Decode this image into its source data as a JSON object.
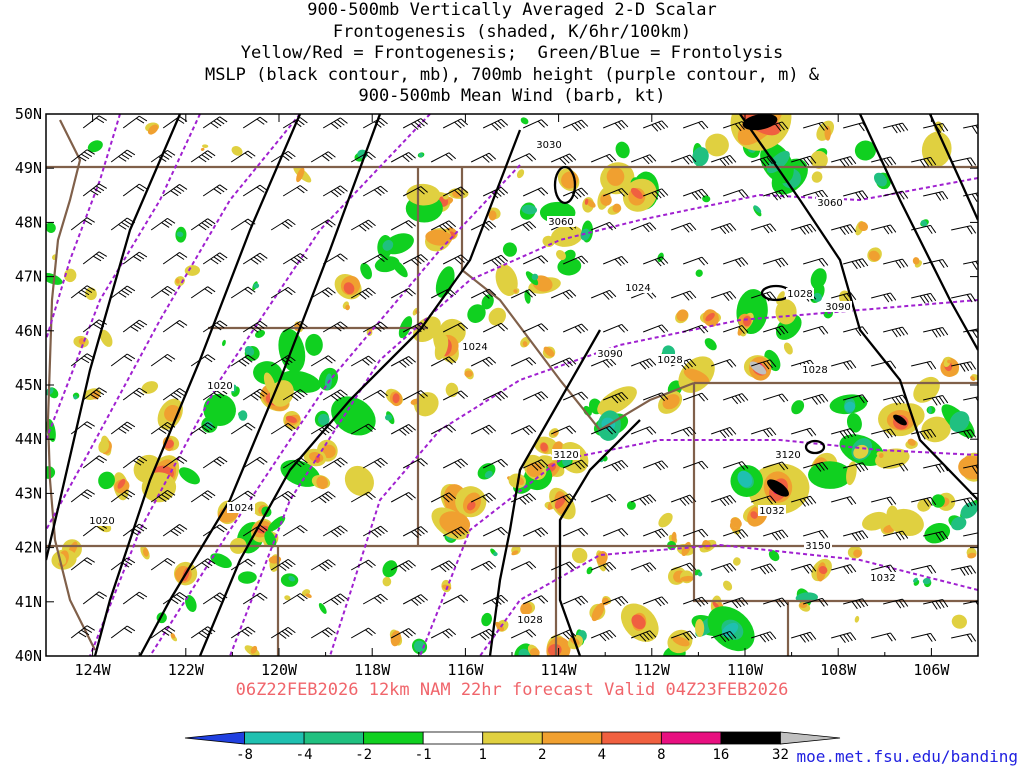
{
  "title_lines": [
    "900-500mb Vertically Averaged 2-D Scalar",
    "Frontogenesis (shaded, K/6hr/100km)",
    "Yellow/Red = Frontogenesis;  Green/Blue = Frontolysis",
    "MSLP (black contour, mb), 700mb height (purple contour, m) &",
    "900-500mb Mean Wind (barb, kt)"
  ],
  "valid_line": "06Z22FEB2026 12km NAM 22hr forecast Valid 04Z23FEB2026",
  "credit": "moe.met.fsu.edu/banding",
  "map": {
    "lat_labels": [
      "50N",
      "49N",
      "48N",
      "47N",
      "46N",
      "45N",
      "44N",
      "43N",
      "42N",
      "41N",
      "40N"
    ],
    "lon_labels": [
      "124W",
      "122W",
      "120W",
      "118W",
      "116W",
      "114W",
      "112W",
      "110W",
      "108W",
      "106W"
    ],
    "lat_range": [
      40,
      50
    ],
    "lon_range": [
      -125,
      -105
    ],
    "mslp_labels": [
      "1020",
      "1024",
      "1024",
      "1024",
      "1028",
      "1028",
      "1028",
      "1028",
      "1032",
      "1032",
      "1020"
    ],
    "height_labels": [
      "3030",
      "3060",
      "3060",
      "3090",
      "3090",
      "3120",
      "3120",
      "3150"
    ],
    "colors": {
      "mslp_contour": "#000000",
      "height_contour": "#a020d0",
      "state_border": "#80604a",
      "wind_barb": "#000000"
    }
  },
  "colorbar": {
    "labels": [
      "-8",
      "-4",
      "-2",
      "-1",
      "1",
      "2",
      "4",
      "8",
      "16",
      "32"
    ],
    "colors": [
      "#2040e0",
      "#1fc0b0",
      "#20c080",
      "#10d020",
      "#ffffff",
      "#e0d040",
      "#f0a030",
      "#f06040",
      "#e81080",
      "#000000",
      "#c0c0c0"
    ]
  }
}
